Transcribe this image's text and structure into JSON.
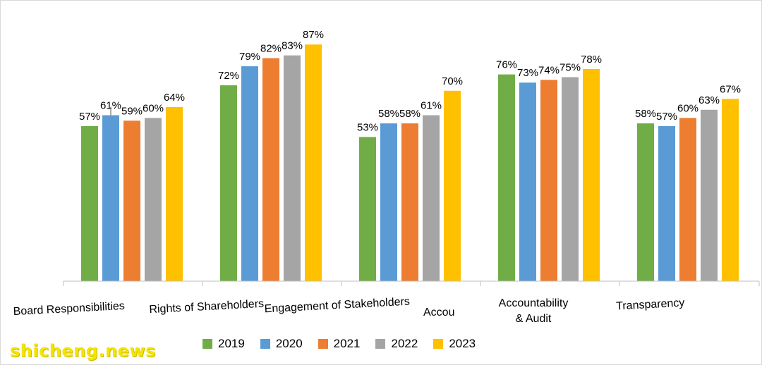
{
  "chart_data": {
    "type": "bar",
    "categories": [
      "Board Responsibilities",
      "Rights of Shareholders",
      "Engagement of Stakeholders",
      "Accountability & Audit",
      "Transparency"
    ],
    "series": [
      {
        "name": "2019",
        "color": "#70ad47",
        "values": [
          57,
          72,
          53,
          76,
          58
        ]
      },
      {
        "name": "2020",
        "color": "#5b9bd5",
        "values": [
          61,
          79,
          58,
          73,
          57
        ]
      },
      {
        "name": "2021",
        "color": "#ed7d31",
        "values": [
          59,
          82,
          58,
          74,
          60
        ]
      },
      {
        "name": "2022",
        "color": "#a5a5a5",
        "values": [
          60,
          83,
          61,
          75,
          63
        ]
      },
      {
        "name": "2023",
        "color": "#ffc000",
        "values": [
          64,
          87,
          70,
          78,
          67
        ]
      }
    ],
    "value_suffix": "%",
    "ylim": [
      0,
      95
    ],
    "grid": false,
    "legend_position": "bottom",
    "title": "",
    "xlabel": "",
    "ylabel": ""
  },
  "category_label_lines": {
    "board": "Board Responsibilities",
    "rights": "Rights of Shareholders",
    "engagement": "Engagement of Stakeholders",
    "stray": "Accou",
    "accountability_line1": "Accountability",
    "accountability_line2": "& Audit",
    "transparency": "Transparency"
  },
  "watermark": "shicheng.news"
}
